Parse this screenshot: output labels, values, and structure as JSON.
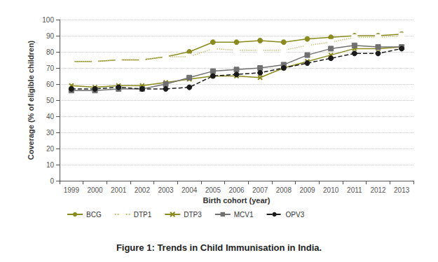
{
  "chart_data": {
    "type": "line",
    "title": "Figure 1: Trends in Child Immunisation in India.",
    "x_label": "Birth cohort (year)",
    "y_label": "Coverage (% of eligible children)",
    "categories": [
      "1999",
      "2000",
      "2001",
      "2002",
      "2003",
      "2004",
      "2005",
      "2006",
      "2007",
      "2008",
      "2009",
      "2010",
      "2011",
      "2012",
      "2013"
    ],
    "series": [
      {
        "name": "BCG",
        "color": "#8a8a1e",
        "marker": "circle",
        "line_style": "solid",
        "values": [
          74,
          74,
          75,
          75,
          77,
          80,
          86,
          86,
          87,
          86,
          88,
          89,
          90,
          90,
          91
        ]
      },
      {
        "name": "DTP1",
        "color": "#c4c47a",
        "marker": "open_square",
        "line_style": "dotted",
        "values": [
          74,
          74,
          75,
          75,
          77,
          77,
          82,
          81,
          81,
          81,
          84,
          86,
          89,
          89,
          90
        ]
      },
      {
        "name": "DTP3",
        "color": "#8a8a1e",
        "marker": "x",
        "line_style": "solid",
        "values": [
          59,
          58,
          59,
          59,
          61,
          63,
          65,
          65,
          64,
          70,
          74,
          78,
          82,
          82,
          83
        ]
      },
      {
        "name": "MCV1",
        "color": "#707070",
        "marker": "square",
        "line_style": "solid",
        "values": [
          56,
          56,
          57,
          57,
          60,
          64,
          68,
          69,
          70,
          72,
          78,
          82,
          84,
          83,
          83
        ]
      },
      {
        "name": "OPV3",
        "color": "#1a1a1a",
        "marker": "circle",
        "line_style": "dashed",
        "values": [
          57,
          57,
          58,
          57,
          57,
          58,
          65,
          66,
          67,
          70,
          73,
          76,
          79,
          79,
          82
        ]
      }
    ],
    "ylim": [
      0,
      100
    ],
    "yticks": [
      0,
      10,
      20,
      30,
      40,
      50,
      60,
      70,
      80,
      90,
      100
    ],
    "grid": true,
    "legend": "bottom"
  }
}
